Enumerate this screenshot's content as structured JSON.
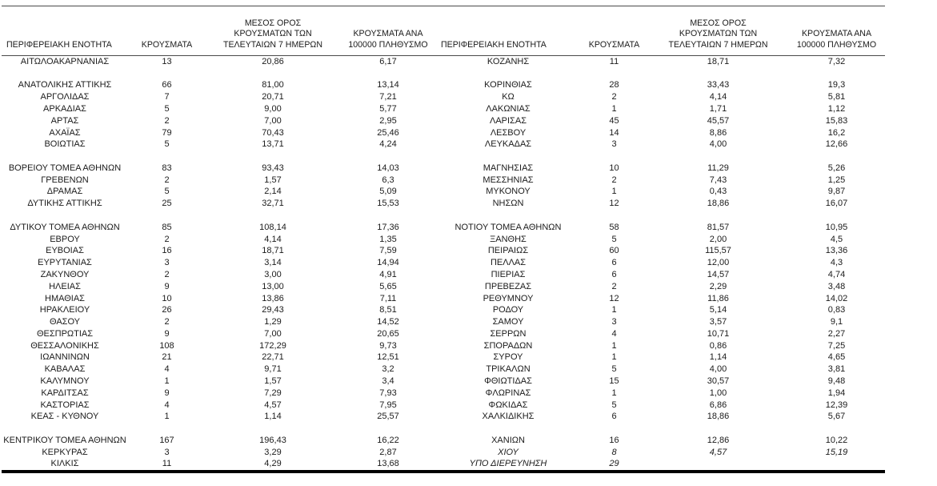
{
  "page": {
    "background": "#ffffff",
    "text_color": "#1b1b1b",
    "rule_color": "#4a4a4a"
  },
  "table": {
    "headers": {
      "region": "ΠΕΡΙΦΕΡΕΙΑΚΗ ΕΝΟΤΗΤΑ",
      "cases": "ΚΡΟΥΣΜΑΤΑ",
      "avg7": "ΜΕΣΟΣ ΟΡΟΣ ΚΡΟΥΣΜΑΤΩΝ ΤΩΝ ΤΕΛΕΥΤΑΙΩΝ 7 ΗΜΕΡΩΝ",
      "per100k": "ΚΡΟΥΣΜΑΤΑ ΑΝΑ 100000 ΠΛΗΘΥΣΜΟ"
    },
    "left_rows": [
      {
        "region": "ΑΙΤΩΛΟΑΚΑΡΝΑΝΙΑΣ",
        "cases": "13",
        "avg7": "20,86",
        "per100k": "6,17"
      },
      {
        "blank": true
      },
      {
        "region": "ΑΝΑΤΟΛΙΚΗΣ ΑΤΤΙΚΗΣ",
        "cases": "66",
        "avg7": "81,00",
        "per100k": "13,14"
      },
      {
        "region": "ΑΡΓΟΛΙΔΑΣ",
        "cases": "7",
        "avg7": "20,71",
        "per100k": "7,21"
      },
      {
        "region": "ΑΡΚΑΔΙΑΣ",
        "cases": "5",
        "avg7": "9,00",
        "per100k": "5,77"
      },
      {
        "region": "ΑΡΤΑΣ",
        "cases": "2",
        "avg7": "7,00",
        "per100k": "2,95"
      },
      {
        "region": "ΑΧΑΪΑΣ",
        "cases": "79",
        "avg7": "70,43",
        "per100k": "25,46"
      },
      {
        "region": "ΒΟΙΩΤΙΑΣ",
        "cases": "5",
        "avg7": "13,71",
        "per100k": "4,24"
      },
      {
        "blank": true
      },
      {
        "region": "ΒΟΡΕΙΟΥ ΤΟΜΕΑ ΑΘΗΝΩΝ",
        "cases": "83",
        "avg7": "93,43",
        "per100k": "14,03"
      },
      {
        "region": "ΓΡΕΒΕΝΩΝ",
        "cases": "2",
        "avg7": "1,57",
        "per100k": "6,3"
      },
      {
        "region": "ΔΡΑΜΑΣ",
        "cases": "5",
        "avg7": "2,14",
        "per100k": "5,09"
      },
      {
        "region": "ΔΥΤΙΚΗΣ ΑΤΤΙΚΗΣ",
        "cases": "25",
        "avg7": "32,71",
        "per100k": "15,53"
      },
      {
        "blank": true
      },
      {
        "region": "ΔΥΤΙΚΟΥ ΤΟΜΕΑ ΑΘΗΝΩΝ",
        "cases": "85",
        "avg7": "108,14",
        "per100k": "17,36"
      },
      {
        "region": "ΕΒΡΟΥ",
        "cases": "2",
        "avg7": "4,14",
        "per100k": "1,35"
      },
      {
        "region": "ΕΥΒΟΙΑΣ",
        "cases": "16",
        "avg7": "18,71",
        "per100k": "7,59"
      },
      {
        "region": "ΕΥΡΥΤΑΝΙΑΣ",
        "cases": "3",
        "avg7": "3,14",
        "per100k": "14,94"
      },
      {
        "region": "ΖΑΚΥΝΘΟΥ",
        "cases": "2",
        "avg7": "3,00",
        "per100k": "4,91"
      },
      {
        "region": "ΗΛΕΙΑΣ",
        "cases": "9",
        "avg7": "13,00",
        "per100k": "5,65"
      },
      {
        "region": "ΗΜΑΘΙΑΣ",
        "cases": "10",
        "avg7": "13,86",
        "per100k": "7,11"
      },
      {
        "region": "ΗΡΑΚΛΕΙΟΥ",
        "cases": "26",
        "avg7": "29,43",
        "per100k": "8,51"
      },
      {
        "region": "ΘΑΣΟΥ",
        "cases": "2",
        "avg7": "1,29",
        "per100k": "14,52"
      },
      {
        "region": "ΘΕΣΠΡΩΤΙΑΣ",
        "cases": "9",
        "avg7": "7,00",
        "per100k": "20,65"
      },
      {
        "region": "ΘΕΣΣΑΛΟΝΙΚΗΣ",
        "cases": "108",
        "avg7": "172,29",
        "per100k": "9,73"
      },
      {
        "region": "ΙΩΑΝΝΙΝΩΝ",
        "cases": "21",
        "avg7": "22,71",
        "per100k": "12,51"
      },
      {
        "region": "ΚΑΒΑΛΑΣ",
        "cases": "4",
        "avg7": "9,71",
        "per100k": "3,2"
      },
      {
        "region": "ΚΑΛΥΜΝΟΥ",
        "cases": "1",
        "avg7": "1,57",
        "per100k": "3,4"
      },
      {
        "region": "ΚΑΡΔΙΤΣΑΣ",
        "cases": "9",
        "avg7": "7,29",
        "per100k": "7,93"
      },
      {
        "region": "ΚΑΣΤΟΡΙΑΣ",
        "cases": "4",
        "avg7": "4,57",
        "per100k": "7,95"
      },
      {
        "region": "ΚΕΑΣ - ΚΥΘΝΟΥ",
        "cases": "1",
        "avg7": "1,14",
        "per100k": "25,57"
      },
      {
        "blank": true
      },
      {
        "region": "ΚΕΝΤΡΙΚΟΥ ΤΟΜΕΑ ΑΘΗΝΩΝ",
        "cases": "167",
        "avg7": "196,43",
        "per100k": "16,22"
      },
      {
        "region": "ΚΕΡΚΥΡΑΣ",
        "cases": "3",
        "avg7": "3,29",
        "per100k": "2,87"
      },
      {
        "region": "ΚΙΛΚΙΣ",
        "cases": "11",
        "avg7": "4,29",
        "per100k": "13,68"
      }
    ],
    "right_rows": [
      {
        "region": "ΚΟΖΑΝΗΣ",
        "cases": "11",
        "avg7": "18,71",
        "per100k": "7,32"
      },
      {
        "blank": true
      },
      {
        "region": "ΚΟΡΙΝΘΙΑΣ",
        "cases": "28",
        "avg7": "33,43",
        "per100k": "19,3"
      },
      {
        "region": "ΚΩ",
        "cases": "2",
        "avg7": "4,14",
        "per100k": "5,81"
      },
      {
        "region": "ΛΑΚΩΝΙΑΣ",
        "cases": "1",
        "avg7": "1,71",
        "per100k": "1,12"
      },
      {
        "region": "ΛΑΡΙΣΑΣ",
        "cases": "45",
        "avg7": "45,57",
        "per100k": "15,83"
      },
      {
        "region": "ΛΕΣΒΟΥ",
        "cases": "14",
        "avg7": "8,86",
        "per100k": "16,2"
      },
      {
        "region": "ΛΕΥΚΑΔΑΣ",
        "cases": "3",
        "avg7": "4,00",
        "per100k": "12,66"
      },
      {
        "blank": true
      },
      {
        "region": "ΜΑΓΝΗΣΙΑΣ",
        "cases": "10",
        "avg7": "11,29",
        "per100k": "5,26"
      },
      {
        "region": "ΜΕΣΣΗΝΙΑΣ",
        "cases": "2",
        "avg7": "7,43",
        "per100k": "1,25"
      },
      {
        "region": "ΜΥΚΟΝΟΥ",
        "cases": "1",
        "avg7": "0,43",
        "per100k": "9,87"
      },
      {
        "region": "ΝΗΣΩΝ",
        "cases": "12",
        "avg7": "18,86",
        "per100k": "16,07"
      },
      {
        "blank": true
      },
      {
        "region": "ΝΟΤΙΟΥ ΤΟΜΕΑ ΑΘΗΝΩΝ",
        "cases": "58",
        "avg7": "81,57",
        "per100k": "10,95"
      },
      {
        "region": "ΞΑΝΘΗΣ",
        "cases": "5",
        "avg7": "2,00",
        "per100k": "4,5"
      },
      {
        "region": "ΠΕΙΡΑΙΩΣ",
        "cases": "60",
        "avg7": "115,57",
        "per100k": "13,36"
      },
      {
        "region": "ΠΕΛΛΑΣ",
        "cases": "6",
        "avg7": "12,00",
        "per100k": "4,3"
      },
      {
        "region": "ΠΙΕΡΙΑΣ",
        "cases": "6",
        "avg7": "14,57",
        "per100k": "4,74"
      },
      {
        "region": "ΠΡΕΒΕΖΑΣ",
        "cases": "2",
        "avg7": "2,29",
        "per100k": "3,48"
      },
      {
        "region": "ΡΕΘΥΜΝΟΥ",
        "cases": "12",
        "avg7": "11,86",
        "per100k": "14,02"
      },
      {
        "region": "ΡΟΔΟΥ",
        "cases": "1",
        "avg7": "5,14",
        "per100k": "0,83"
      },
      {
        "region": "ΣΑΜΟΥ",
        "cases": "3",
        "avg7": "3,57",
        "per100k": "9,1"
      },
      {
        "region": "ΣΕΡΡΩΝ",
        "cases": "4",
        "avg7": "10,71",
        "per100k": "2,27"
      },
      {
        "region": "ΣΠΟΡΑΔΩΝ",
        "cases": "1",
        "avg7": "0,86",
        "per100k": "7,25"
      },
      {
        "region": "ΣΥΡΟΥ",
        "cases": "1",
        "avg7": "1,14",
        "per100k": "4,65"
      },
      {
        "region": "ΤΡΙΚΑΛΩΝ",
        "cases": "5",
        "avg7": "4,00",
        "per100k": "3,81"
      },
      {
        "region": "ΦΘΙΩΤΙΔΑΣ",
        "cases": "15",
        "avg7": "30,57",
        "per100k": "9,48"
      },
      {
        "region": "ΦΛΩΡΙΝΑΣ",
        "cases": "1",
        "avg7": "1,00",
        "per100k": "1,94"
      },
      {
        "region": "ΦΩΚΙΔΑΣ",
        "cases": "5",
        "avg7": "6,86",
        "per100k": "12,39"
      },
      {
        "region": "ΧΑΛΚΙΔΙΚΗΣ",
        "cases": "6",
        "avg7": "18,86",
        "per100k": "5,67"
      },
      {
        "blank": true
      },
      {
        "region": "ΧΑΝΙΩΝ",
        "cases": "16",
        "avg7": "12,86",
        "per100k": "10,22"
      },
      {
        "region": "ΧΙΟΥ",
        "cases": "8",
        "avg7": "4,57",
        "per100k": "15,19",
        "italic": true
      },
      {
        "region": "ΥΠΟ ΔΙΕΡΕΥΝΗΣΗ",
        "cases": "29",
        "avg7": "",
        "per100k": "",
        "italic": true
      }
    ]
  }
}
